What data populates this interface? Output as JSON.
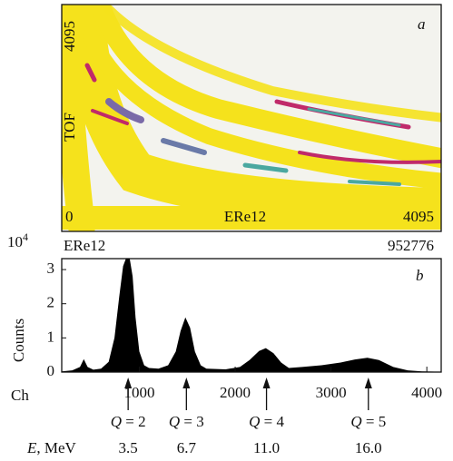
{
  "chart_data": [
    {
      "type": "density-image",
      "panel_label": "a",
      "x_label": "ERe12",
      "y_label": "TOF",
      "x_min_label": "0",
      "x_max_label": "4095",
      "y_max_label": "4095"
    },
    {
      "type": "area",
      "panel_label": "b",
      "spectrum_label": "ERe12",
      "total_counts": "952776",
      "y_label": "Counts",
      "x_label": "Ch",
      "y_scale": {
        "base": "10",
        "exponent": "4"
      },
      "x": [
        190,
        300,
        380,
        420,
        460,
        520,
        600,
        680,
        740,
        790,
        830,
        860,
        900,
        930,
        960,
        1000,
        1050,
        1100,
        1200,
        1300,
        1380,
        1430,
        1480,
        1530,
        1580,
        1640,
        1700,
        1900,
        2050,
        2150,
        2250,
        2320,
        2400,
        2480,
        2560,
        2700,
        2900,
        3100,
        3250,
        3380,
        3500,
        3650,
        3800,
        3950,
        4150
      ],
      "series": [
        {
          "name": "ERe12",
          "color": "#000000",
          "values": [
            0.02,
            0.05,
            0.15,
            0.38,
            0.15,
            0.07,
            0.1,
            0.3,
            1.0,
            2.2,
            3.1,
            3.32,
            3.32,
            2.8,
            1.6,
            0.6,
            0.2,
            0.12,
            0.1,
            0.2,
            0.6,
            1.2,
            1.6,
            1.3,
            0.6,
            0.2,
            0.1,
            0.08,
            0.15,
            0.35,
            0.62,
            0.7,
            0.55,
            0.28,
            0.12,
            0.15,
            0.2,
            0.28,
            0.37,
            0.42,
            0.35,
            0.15,
            0.05,
            0.02,
            0.01
          ]
        }
      ],
      "xlim": [
        190,
        4150
      ],
      "ylim": [
        0,
        3.32
      ],
      "xticks": [
        1000,
        2000,
        3000,
        4000
      ],
      "yticks": [
        0,
        1,
        2,
        3
      ],
      "charge_symbol": "Q",
      "energy_symbol": "E",
      "energy_unit": ", MeV",
      "peaks": [
        {
          "channel": 883,
          "charge": "= 2",
          "energy": "3.5"
        },
        {
          "channel": 1491,
          "charge": "= 3",
          "energy": "6.7"
        },
        {
          "channel": 2327,
          "charge": "= 4",
          "energy": "11.0"
        },
        {
          "channel": 3390,
          "charge": "= 5",
          "energy": "16.0"
        }
      ]
    }
  ]
}
